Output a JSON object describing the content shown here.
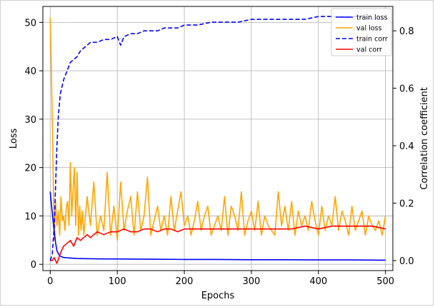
{
  "chart_data": {
    "type": "line",
    "xlabel": "Epochs",
    "ylabel_left": "Loss",
    "ylabel_right": "Correlation coefficient",
    "xlim": [
      -11,
      511
    ],
    "ylim_left": [
      -1.3,
      53.3
    ],
    "ylim_right": [
      -0.035,
      0.885
    ],
    "xticks": [
      0,
      100,
      200,
      300,
      400,
      500
    ],
    "yticks_left": [
      0,
      10,
      20,
      30,
      40,
      50
    ],
    "yticks_right": [
      0.0,
      0.2,
      0.4,
      0.6,
      0.8
    ],
    "ytick_labels_right": [
      "0.0",
      "0.2",
      "0.4",
      "0.6",
      "0.8"
    ],
    "grid": true,
    "legend_position": "top-right",
    "series": [
      {
        "name": "train loss",
        "axis": "left",
        "color": "#0000ff",
        "style": "solid",
        "x": [
          0,
          2,
          5,
          8,
          10,
          13,
          16,
          20,
          25,
          30,
          40,
          60,
          80,
          100,
          150,
          200,
          250,
          300,
          350,
          400,
          450,
          500
        ],
        "y": [
          15.0,
          12.0,
          8.0,
          4.5,
          2.8,
          2.0,
          1.6,
          1.4,
          1.35,
          1.3,
          1.2,
          1.15,
          1.1,
          1.1,
          1.05,
          1.0,
          1.0,
          0.95,
          0.95,
          0.9,
          0.9,
          0.85
        ]
      },
      {
        "name": "val loss",
        "axis": "left",
        "color": "#ffa500",
        "style": "solid",
        "x": [
          0,
          2,
          4,
          6,
          8,
          10,
          12,
          14,
          16,
          18,
          20,
          22,
          24,
          26,
          28,
          30,
          32,
          34,
          36,
          38,
          40,
          42,
          44,
          46,
          48,
          50,
          55,
          60,
          65,
          70,
          75,
          80,
          85,
          90,
          95,
          100,
          105,
          110,
          115,
          120,
          125,
          130,
          135,
          140,
          145,
          150,
          155,
          160,
          165,
          170,
          175,
          180,
          185,
          190,
          195,
          200,
          205,
          210,
          215,
          220,
          225,
          230,
          235,
          240,
          245,
          250,
          255,
          260,
          265,
          270,
          275,
          280,
          285,
          290,
          295,
          300,
          305,
          310,
          315,
          320,
          325,
          330,
          335,
          340,
          345,
          350,
          355,
          360,
          365,
          370,
          375,
          380,
          385,
          390,
          395,
          400,
          405,
          410,
          415,
          420,
          425,
          430,
          435,
          440,
          445,
          450,
          455,
          460,
          465,
          470,
          475,
          480,
          485,
          490,
          495,
          500
        ],
        "y": [
          51,
          38,
          22,
          5,
          13,
          8,
          11,
          6,
          14,
          9,
          10,
          7,
          12,
          13,
          8,
          21,
          10,
          15,
          20,
          8,
          19,
          6,
          12,
          7,
          11,
          6,
          14,
          8,
          17,
          6,
          10,
          7,
          19,
          6,
          12,
          5,
          17,
          7,
          11,
          14,
          6,
          15,
          7,
          10,
          18,
          6,
          9,
          12,
          7,
          10,
          6,
          14,
          7,
          11,
          15,
          8,
          10,
          6,
          9,
          13,
          7,
          10,
          12,
          6,
          8,
          10,
          7,
          14,
          6,
          12,
          10,
          7,
          15,
          6,
          9,
          11,
          7,
          13,
          6,
          10,
          8,
          7,
          6,
          15,
          8,
          12,
          7,
          13,
          6,
          11,
          8,
          10,
          7,
          13,
          9,
          6,
          12,
          7,
          10,
          8,
          14,
          7,
          11,
          9,
          6,
          12,
          7,
          9,
          11,
          6,
          10,
          8,
          7,
          9,
          6,
          10
        ]
      },
      {
        "name": "train corr",
        "axis": "right",
        "color": "#0000ff",
        "style": "dashed",
        "x": [
          0,
          3,
          6,
          8,
          10,
          12,
          15,
          20,
          25,
          30,
          35,
          40,
          45,
          50,
          55,
          60,
          70,
          80,
          90,
          100,
          105,
          110,
          120,
          130,
          140,
          150,
          160,
          170,
          180,
          190,
          200,
          220,
          240,
          260,
          280,
          300,
          320,
          340,
          360,
          380,
          400,
          420,
          440,
          460,
          480,
          500
        ],
        "y": [
          0.0,
          0.02,
          0.12,
          0.26,
          0.4,
          0.5,
          0.58,
          0.63,
          0.66,
          0.69,
          0.7,
          0.71,
          0.73,
          0.74,
          0.75,
          0.76,
          0.76,
          0.77,
          0.77,
          0.78,
          0.75,
          0.78,
          0.79,
          0.79,
          0.8,
          0.8,
          0.8,
          0.81,
          0.81,
          0.81,
          0.82,
          0.82,
          0.83,
          0.83,
          0.83,
          0.84,
          0.84,
          0.84,
          0.84,
          0.84,
          0.85,
          0.85,
          0.85,
          0.85,
          0.84,
          0.84
        ]
      },
      {
        "name": "val corr",
        "axis": "right",
        "color": "#ff0000",
        "style": "solid",
        "x": [
          0,
          3,
          6,
          10,
          13,
          16,
          20,
          25,
          30,
          35,
          40,
          45,
          50,
          55,
          60,
          65,
          70,
          80,
          90,
          100,
          110,
          120,
          130,
          140,
          150,
          160,
          170,
          180,
          190,
          200,
          220,
          240,
          260,
          280,
          300,
          320,
          340,
          360,
          380,
          400,
          420,
          440,
          460,
          480,
          500
        ],
        "y": [
          0.0,
          0.0,
          0.01,
          -0.01,
          0.01,
          0.03,
          0.05,
          0.06,
          0.07,
          0.05,
          0.08,
          0.07,
          0.08,
          0.09,
          0.08,
          0.09,
          0.1,
          0.09,
          0.1,
          0.1,
          0.11,
          0.1,
          0.1,
          0.11,
          0.11,
          0.1,
          0.11,
          0.11,
          0.1,
          0.11,
          0.11,
          0.11,
          0.11,
          0.11,
          0.11,
          0.11,
          0.11,
          0.11,
          0.12,
          0.11,
          0.12,
          0.12,
          0.12,
          0.12,
          0.11
        ]
      }
    ]
  }
}
